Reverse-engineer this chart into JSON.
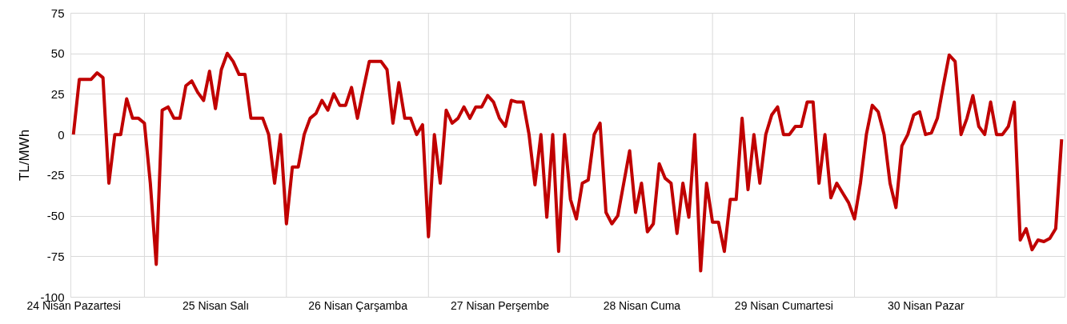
{
  "chart_data": {
    "type": "line",
    "ylabel": "TL/MWh",
    "categories": [
      "24 Nisan Pazartesi",
      null,
      null,
      null,
      null,
      null,
      null,
      null,
      null,
      null,
      null,
      null,
      null,
      null,
      null,
      null,
      null,
      null,
      null,
      null,
      null,
      null,
      null,
      null,
      "25 Nisan Salı",
      null,
      null,
      null,
      null,
      null,
      null,
      null,
      null,
      null,
      null,
      null,
      null,
      null,
      null,
      null,
      null,
      null,
      null,
      null,
      null,
      null,
      null,
      null,
      "26 Nisan Çarşamba",
      null,
      null,
      null,
      null,
      null,
      null,
      null,
      null,
      null,
      null,
      null,
      null,
      null,
      null,
      null,
      null,
      null,
      null,
      null,
      null,
      null,
      null,
      null,
      "27 Nisan Perşembe",
      null,
      null,
      null,
      null,
      null,
      null,
      null,
      null,
      null,
      null,
      null,
      null,
      null,
      null,
      null,
      null,
      null,
      null,
      null,
      null,
      null,
      null,
      null,
      "28 Nisan Cuma",
      null,
      null,
      null,
      null,
      null,
      null,
      null,
      null,
      null,
      null,
      null,
      null,
      null,
      null,
      null,
      null,
      null,
      null,
      null,
      null,
      null,
      null,
      null,
      "29 Nisan Cumartesi",
      null,
      null,
      null,
      null,
      null,
      null,
      null,
      null,
      null,
      null,
      null,
      null,
      null,
      null,
      null,
      null,
      null,
      null,
      null,
      null,
      null,
      null,
      null,
      "30 Nisan Pazar",
      null,
      null,
      null,
      null,
      null,
      null,
      null,
      null,
      null,
      null,
      null,
      null,
      null,
      null,
      null,
      null,
      null,
      null,
      null,
      null,
      null,
      null,
      null
    ],
    "series": [
      {
        "color": "#c00000",
        "values": [
          0,
          34,
          34,
          34,
          38,
          35,
          -30,
          0,
          0,
          22,
          10,
          10,
          7,
          -30,
          -80,
          15,
          17,
          10,
          10,
          30,
          33,
          26,
          21,
          39,
          16,
          40,
          50,
          45,
          37,
          37,
          10,
          10,
          10,
          0,
          -30,
          0,
          -55,
          -20,
          -20,
          0,
          10,
          13,
          21,
          15,
          25,
          18,
          18,
          29,
          10,
          28,
          45,
          45,
          45,
          40,
          7,
          32,
          10,
          10,
          0,
          6,
          -63,
          0,
          -30,
          15,
          7,
          10,
          17,
          10,
          17,
          17,
          24,
          20,
          10,
          5,
          21,
          20,
          20,
          0,
          -31,
          0,
          -51,
          0,
          -72,
          0,
          -40,
          -52,
          -30,
          -28,
          0,
          7,
          -48,
          -55,
          -50,
          -30,
          -10,
          -48,
          -30,
          -60,
          -55,
          -18,
          -27,
          -30,
          -61,
          -30,
          -51,
          0,
          -84,
          -30,
          -54,
          -54,
          -72,
          -40,
          -40,
          10,
          -34,
          0,
          -30,
          0,
          12,
          17,
          0,
          0,
          5,
          5,
          20,
          20,
          -30,
          0,
          -39,
          -30,
          -36,
          -42,
          -52,
          -30,
          0,
          18,
          14,
          0,
          -30,
          -45,
          -7,
          0,
          12,
          14,
          0,
          1,
          10,
          30,
          49,
          45,
          0,
          10,
          24,
          5,
          0,
          20,
          0,
          0,
          5,
          20,
          -65,
          -58,
          -71,
          -65,
          -66,
          -64,
          -58,
          -3
        ]
      }
    ],
    "ylim": [
      -100,
      75
    ],
    "yticks": [
      -100,
      -75,
      -50,
      -25,
      0,
      25,
      50,
      75
    ],
    "grid": true,
    "marker": "none",
    "line_style": "solid"
  }
}
